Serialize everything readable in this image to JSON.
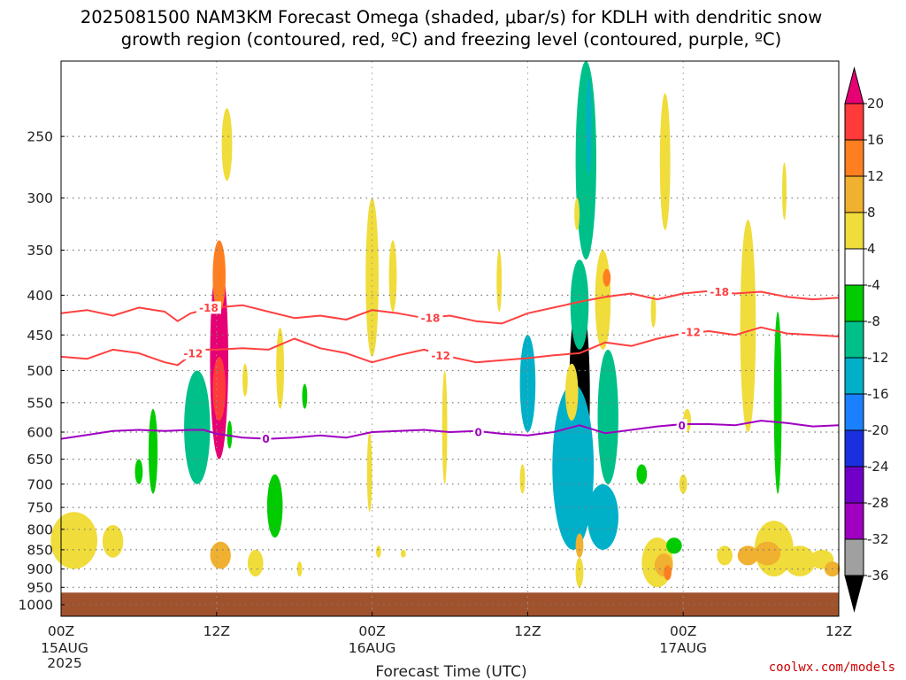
{
  "title_line1": "2025081500 NAM3KM Forecast Omega (shaded, μbar/s) for KDLH with dendritic snow",
  "title_line2": "growth region (contoured, red, ºC) and freezing level (contoured, purple, ºC)",
  "credit": "coolwx.com/models",
  "chart_data": {
    "type": "heatmap",
    "title": "2025081500 NAM3KM Forecast Omega (shaded, μbar/s) for KDLH with dendritic snow growth region (contoured, red, ºC) and freezing level (contoured, purple, ºC)",
    "xlabel": "Forecast Time (UTC)",
    "ylabel": "",
    "x_unit": "forecast hour",
    "xlim": [
      0,
      60
    ],
    "ylim": [
      1035,
      200
    ],
    "y_scale": "log",
    "grid": true,
    "x_ticks": [
      {
        "hour": 0,
        "label": "00Z",
        "sub": [
          "15AUG",
          "2025"
        ]
      },
      {
        "hour": 12,
        "label": "12Z",
        "sub": []
      },
      {
        "hour": 24,
        "label": "00Z",
        "sub": [
          "16AUG"
        ]
      },
      {
        "hour": 36,
        "label": "12Z",
        "sub": []
      },
      {
        "hour": 48,
        "label": "00Z",
        "sub": [
          "17AUG"
        ]
      },
      {
        "hour": 60,
        "label": "12Z",
        "sub": []
      }
    ],
    "y_ticks": [
      250,
      300,
      350,
      400,
      450,
      500,
      550,
      600,
      650,
      700,
      750,
      800,
      850,
      900,
      950,
      1000
    ],
    "colorbar": {
      "levels": [
        20,
        16,
        12,
        8,
        4,
        -4,
        -8,
        -12,
        -16,
        -20,
        -24,
        -28,
        -32,
        -36
      ],
      "colors": [
        "#e60073",
        "#ff3a3a",
        "#ff7f20",
        "#f0b030",
        "#f0dc3a",
        "#ffffff",
        "#00cc00",
        "#00c08a",
        "#00b0c8",
        "#1a80ff",
        "#1a30e0",
        "#7000c8",
        "#a000c0",
        "#a0a0a0",
        "#000000"
      ]
    },
    "terrain_color": "#a0522d",
    "surface_pressure": 965,
    "series": [
      {
        "name": "-18",
        "color": "#ff4040",
        "x": [
          0,
          2,
          4,
          6,
          8,
          9,
          10,
          11,
          12,
          14,
          16,
          18,
          20,
          22,
          24,
          26,
          28,
          30,
          32,
          34,
          36,
          38,
          40,
          42,
          44,
          46,
          48,
          50,
          52,
          54,
          56,
          58,
          60
        ],
        "y": [
          422,
          418,
          425,
          415,
          420,
          432,
          422,
          418,
          415,
          412,
          420,
          428,
          425,
          430,
          418,
          422,
          428,
          425,
          432,
          435,
          422,
          415,
          408,
          402,
          398,
          405,
          398,
          395,
          398,
          396,
          402,
          405,
          403
        ]
      },
      {
        "name": "-12",
        "color": "#ff4040",
        "x": [
          0,
          2,
          4,
          6,
          8,
          9,
          10,
          11,
          12,
          14,
          16,
          18,
          20,
          22,
          24,
          26,
          28,
          30,
          32,
          34,
          36,
          38,
          40,
          42,
          44,
          46,
          48,
          50,
          52,
          54,
          56,
          58,
          60
        ],
        "y": [
          480,
          483,
          470,
          475,
          488,
          492,
          478,
          470,
          470,
          468,
          470,
          455,
          468,
          475,
          488,
          478,
          470,
          480,
          488,
          485,
          482,
          478,
          475,
          460,
          465,
          455,
          448,
          445,
          450,
          440,
          448,
          450,
          452
        ]
      },
      {
        "name": "0",
        "color": "#a000c0",
        "x": [
          0,
          2,
          4,
          6,
          8,
          10,
          11,
          12,
          14,
          16,
          18,
          20,
          22,
          24,
          26,
          28,
          30,
          32,
          34,
          36,
          38,
          40,
          42,
          44,
          46,
          48,
          50,
          52,
          54,
          56,
          58,
          60
        ],
        "y": [
          612,
          605,
          598,
          596,
          598,
          596,
          596,
          603,
          610,
          612,
          610,
          606,
          610,
          600,
          598,
          596,
          600,
          598,
          603,
          606,
          600,
          588,
          602,
          596,
          590,
          586,
          586,
          588,
          580,
          584,
          590,
          588
        ]
      }
    ],
    "contour_labels": [
      {
        "text": "-18",
        "x": 11.4,
        "y": 415,
        "series": 0
      },
      {
        "text": "-18",
        "x": 28.5,
        "y": 428,
        "series": 0
      },
      {
        "text": "-18",
        "x": 50.8,
        "y": 396,
        "series": 0
      },
      {
        "text": "-12",
        "x": 10.2,
        "y": 475,
        "series": 1
      },
      {
        "text": "-12",
        "x": 29.3,
        "y": 478,
        "series": 1
      },
      {
        "text": "-12",
        "x": 48.6,
        "y": 446,
        "series": 1
      },
      {
        "text": "0",
        "x": 15.8,
        "y": 612,
        "series": 2
      },
      {
        "text": "0",
        "x": 32.2,
        "y": 600,
        "series": 2
      },
      {
        "text": "0",
        "x": 47.9,
        "y": 588,
        "series": 2
      }
    ],
    "omega_features": [
      {
        "x": 12.2,
        "p0": 360,
        "p1": 650,
        "w": 0.7,
        "v": 22
      },
      {
        "x": 12.2,
        "p0": 340,
        "p1": 420,
        "w": 0.5,
        "v": 14
      },
      {
        "x": 12.2,
        "p0": 480,
        "p1": 580,
        "w": 0.5,
        "v": 18
      },
      {
        "x": 12.8,
        "p0": 230,
        "p1": 285,
        "w": 0.4,
        "v": 6
      },
      {
        "x": 12.3,
        "p0": 830,
        "p1": 900,
        "w": 0.8,
        "v": 10
      },
      {
        "x": 10.5,
        "p0": 500,
        "p1": 700,
        "w": 1.0,
        "v": -8
      },
      {
        "x": 7.1,
        "p0": 560,
        "p1": 720,
        "w": 0.35,
        "v": -6
      },
      {
        "x": 6.0,
        "p0": 650,
        "p1": 700,
        "w": 0.3,
        "v": -6
      },
      {
        "x": 1.0,
        "p0": 760,
        "p1": 900,
        "w": 1.8,
        "v": 6
      },
      {
        "x": 4.0,
        "p0": 790,
        "p1": 870,
        "w": 0.8,
        "v": 6
      },
      {
        "x": 16.5,
        "p0": 680,
        "p1": 820,
        "w": 0.6,
        "v": -7
      },
      {
        "x": 16.9,
        "p0": 440,
        "p1": 560,
        "w": 0.3,
        "v": 6
      },
      {
        "x": 14.2,
        "p0": 490,
        "p1": 540,
        "w": 0.2,
        "v": 5
      },
      {
        "x": 13.0,
        "p0": 580,
        "p1": 630,
        "w": 0.2,
        "v": -6
      },
      {
        "x": 18.8,
        "p0": 520,
        "p1": 560,
        "w": 0.2,
        "v": -6
      },
      {
        "x": 15.0,
        "p0": 850,
        "p1": 920,
        "w": 0.6,
        "v": 6
      },
      {
        "x": 18.4,
        "p0": 880,
        "p1": 920,
        "w": 0.2,
        "v": 5
      },
      {
        "x": 24.0,
        "p0": 300,
        "p1": 480,
        "w": 0.5,
        "v": 6
      },
      {
        "x": 25.6,
        "p0": 340,
        "p1": 420,
        "w": 0.3,
        "v": 5
      },
      {
        "x": 23.8,
        "p0": 600,
        "p1": 760,
        "w": 0.2,
        "v": 5
      },
      {
        "x": 24.5,
        "p0": 840,
        "p1": 870,
        "w": 0.2,
        "v": 5
      },
      {
        "x": 26.4,
        "p0": 850,
        "p1": 870,
        "w": 0.2,
        "v": 5
      },
      {
        "x": 29.6,
        "p0": 500,
        "p1": 700,
        "w": 0.2,
        "v": 5
      },
      {
        "x": 33.8,
        "p0": 350,
        "p1": 420,
        "w": 0.2,
        "v": 5
      },
      {
        "x": 36.0,
        "p0": 450,
        "p1": 600,
        "w": 0.6,
        "v": -12
      },
      {
        "x": 35.6,
        "p0": 660,
        "p1": 720,
        "w": 0.2,
        "v": 5
      },
      {
        "x": 40.0,
        "p0": 400,
        "p1": 720,
        "w": 0.8,
        "v": -40
      },
      {
        "x": 40.0,
        "p0": 480,
        "p1": 680,
        "w": 0.3,
        "v": -40
      },
      {
        "x": 39.5,
        "p0": 520,
        "p1": 850,
        "w": 1.6,
        "v": -14
      },
      {
        "x": 40.0,
        "p0": 360,
        "p1": 470,
        "w": 0.7,
        "v": -10
      },
      {
        "x": 39.4,
        "p0": 490,
        "p1": 580,
        "w": 0.5,
        "v": 6
      },
      {
        "x": 42.2,
        "p0": 470,
        "p1": 700,
        "w": 0.8,
        "v": -8
      },
      {
        "x": 41.8,
        "p0": 700,
        "p1": 850,
        "w": 1.2,
        "v": -14
      },
      {
        "x": 40.0,
        "p0": 810,
        "p1": 870,
        "w": 0.3,
        "v": 10
      },
      {
        "x": 40.0,
        "p0": 870,
        "p1": 950,
        "w": 0.3,
        "v": 6
      },
      {
        "x": 41.8,
        "p0": 350,
        "p1": 470,
        "w": 0.6,
        "v": 6
      },
      {
        "x": 42.1,
        "p0": 370,
        "p1": 390,
        "w": 0.3,
        "v": 12
      },
      {
        "x": 40.5,
        "p0": 200,
        "p1": 360,
        "w": 0.8,
        "v": -8
      },
      {
        "x": 40.7,
        "p0": 210,
        "p1": 280,
        "w": 0.2,
        "v": -14
      },
      {
        "x": 39.8,
        "p0": 300,
        "p1": 330,
        "w": 0.2,
        "v": 5
      },
      {
        "x": 44.8,
        "p0": 660,
        "p1": 700,
        "w": 0.4,
        "v": -6
      },
      {
        "x": 46.0,
        "p0": 820,
        "p1": 950,
        "w": 1.2,
        "v": 6
      },
      {
        "x": 46.5,
        "p0": 860,
        "p1": 920,
        "w": 0.7,
        "v": 10
      },
      {
        "x": 46.8,
        "p0": 890,
        "p1": 930,
        "w": 0.3,
        "v": 14
      },
      {
        "x": 45.7,
        "p0": 400,
        "p1": 440,
        "w": 0.2,
        "v": 5
      },
      {
        "x": 46.6,
        "p0": 220,
        "p1": 330,
        "w": 0.4,
        "v": 6
      },
      {
        "x": 47.3,
        "p0": 820,
        "p1": 860,
        "w": 0.6,
        "v": -6
      },
      {
        "x": 48.0,
        "p0": 680,
        "p1": 720,
        "w": 0.3,
        "v": 5
      },
      {
        "x": 48.3,
        "p0": 560,
        "p1": 600,
        "w": 0.3,
        "v": 5
      },
      {
        "x": 53.0,
        "p0": 320,
        "p1": 600,
        "w": 0.6,
        "v": 6
      },
      {
        "x": 55.3,
        "p0": 420,
        "p1": 720,
        "w": 0.3,
        "v": -7
      },
      {
        "x": 55.0,
        "p0": 780,
        "p1": 920,
        "w": 1.5,
        "v": 6
      },
      {
        "x": 54.5,
        "p0": 830,
        "p1": 890,
        "w": 1.0,
        "v": 8
      },
      {
        "x": 53.0,
        "p0": 840,
        "p1": 890,
        "w": 0.8,
        "v": 9
      },
      {
        "x": 57.0,
        "p0": 840,
        "p1": 920,
        "w": 1.2,
        "v": 6
      },
      {
        "x": 58.7,
        "p0": 850,
        "p1": 900,
        "w": 0.9,
        "v": 6
      },
      {
        "x": 59.5,
        "p0": 880,
        "p1": 920,
        "w": 0.6,
        "v": 8
      },
      {
        "x": 55.8,
        "p0": 270,
        "p1": 320,
        "w": 0.15,
        "v": 5
      },
      {
        "x": 51.2,
        "p0": 840,
        "p1": 890,
        "w": 0.6,
        "v": 6
      }
    ]
  }
}
